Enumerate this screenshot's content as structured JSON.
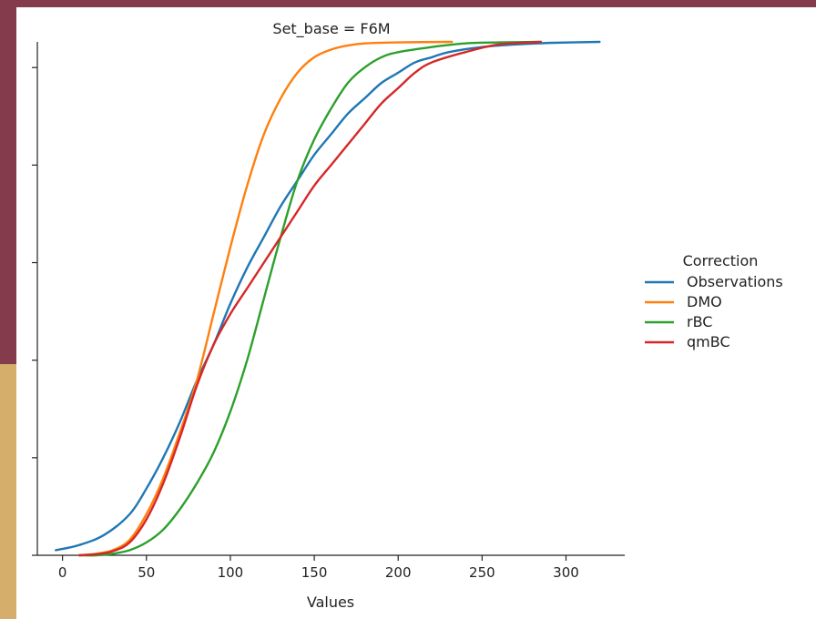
{
  "chart_data": {
    "type": "line",
    "title": "Set_base = F6M",
    "xlabel": "Values",
    "ylabel": "",
    "xlim": [
      -15,
      335
    ],
    "ylim": [
      0,
      1
    ],
    "x_ticks": [
      0,
      50,
      100,
      150,
      200,
      250,
      300
    ],
    "y_tick_values": [
      0,
      0.19,
      0.38,
      0.57,
      0.76,
      0.95
    ],
    "grid": false,
    "legend": {
      "title": "Correction",
      "placement": "right"
    },
    "series": [
      {
        "name": "Observations",
        "color": "#1f77b4",
        "points": [
          [
            -4,
            0.01
          ],
          [
            10,
            0.02
          ],
          [
            25,
            0.04
          ],
          [
            40,
            0.08
          ],
          [
            50,
            0.13
          ],
          [
            60,
            0.19
          ],
          [
            70,
            0.26
          ],
          [
            80,
            0.34
          ],
          [
            90,
            0.41
          ],
          [
            100,
            0.49
          ],
          [
            110,
            0.56
          ],
          [
            120,
            0.62
          ],
          [
            130,
            0.68
          ],
          [
            140,
            0.73
          ],
          [
            150,
            0.78
          ],
          [
            160,
            0.82
          ],
          [
            170,
            0.86
          ],
          [
            180,
            0.89
          ],
          [
            190,
            0.92
          ],
          [
            200,
            0.94
          ],
          [
            210,
            0.96
          ],
          [
            220,
            0.97
          ],
          [
            230,
            0.98
          ],
          [
            250,
            0.99
          ],
          [
            270,
            0.995
          ],
          [
            290,
            0.998
          ],
          [
            320,
            1.0
          ]
        ]
      },
      {
        "name": "DMO",
        "color": "#ff7f0e",
        "points": [
          [
            10,
            0.0
          ],
          [
            20,
            0.003
          ],
          [
            30,
            0.01
          ],
          [
            40,
            0.03
          ],
          [
            50,
            0.08
          ],
          [
            60,
            0.15
          ],
          [
            70,
            0.24
          ],
          [
            80,
            0.34
          ],
          [
            90,
            0.47
          ],
          [
            100,
            0.6
          ],
          [
            110,
            0.72
          ],
          [
            120,
            0.82
          ],
          [
            130,
            0.89
          ],
          [
            140,
            0.94
          ],
          [
            150,
            0.97
          ],
          [
            160,
            0.985
          ],
          [
            170,
            0.993
          ],
          [
            180,
            0.997
          ],
          [
            200,
            0.999
          ],
          [
            232,
            1.0
          ]
        ]
      },
      {
        "name": "rBC",
        "color": "#2ca02c",
        "points": [
          [
            10,
            0.0
          ],
          [
            20,
            0.0
          ],
          [
            30,
            0.003
          ],
          [
            40,
            0.01
          ],
          [
            50,
            0.025
          ],
          [
            60,
            0.05
          ],
          [
            70,
            0.09
          ],
          [
            80,
            0.14
          ],
          [
            90,
            0.2
          ],
          [
            100,
            0.28
          ],
          [
            110,
            0.38
          ],
          [
            120,
            0.5
          ],
          [
            130,
            0.62
          ],
          [
            140,
            0.73
          ],
          [
            150,
            0.81
          ],
          [
            160,
            0.87
          ],
          [
            170,
            0.92
          ],
          [
            180,
            0.95
          ],
          [
            190,
            0.97
          ],
          [
            200,
            0.98
          ],
          [
            220,
            0.99
          ],
          [
            240,
            0.997
          ],
          [
            260,
            0.999
          ],
          [
            285,
            1.0
          ]
        ]
      },
      {
        "name": "qmBC",
        "color": "#d62728",
        "points": [
          [
            10,
            0.0
          ],
          [
            20,
            0.002
          ],
          [
            30,
            0.008
          ],
          [
            40,
            0.025
          ],
          [
            50,
            0.07
          ],
          [
            60,
            0.14
          ],
          [
            70,
            0.23
          ],
          [
            80,
            0.33
          ],
          [
            90,
            0.41
          ],
          [
            100,
            0.47
          ],
          [
            110,
            0.52
          ],
          [
            120,
            0.57
          ],
          [
            130,
            0.62
          ],
          [
            140,
            0.67
          ],
          [
            150,
            0.72
          ],
          [
            160,
            0.76
          ],
          [
            170,
            0.8
          ],
          [
            180,
            0.84
          ],
          [
            190,
            0.88
          ],
          [
            200,
            0.91
          ],
          [
            210,
            0.94
          ],
          [
            220,
            0.96
          ],
          [
            240,
            0.98
          ],
          [
            260,
            0.995
          ],
          [
            285,
            1.0
          ]
        ]
      }
    ]
  }
}
